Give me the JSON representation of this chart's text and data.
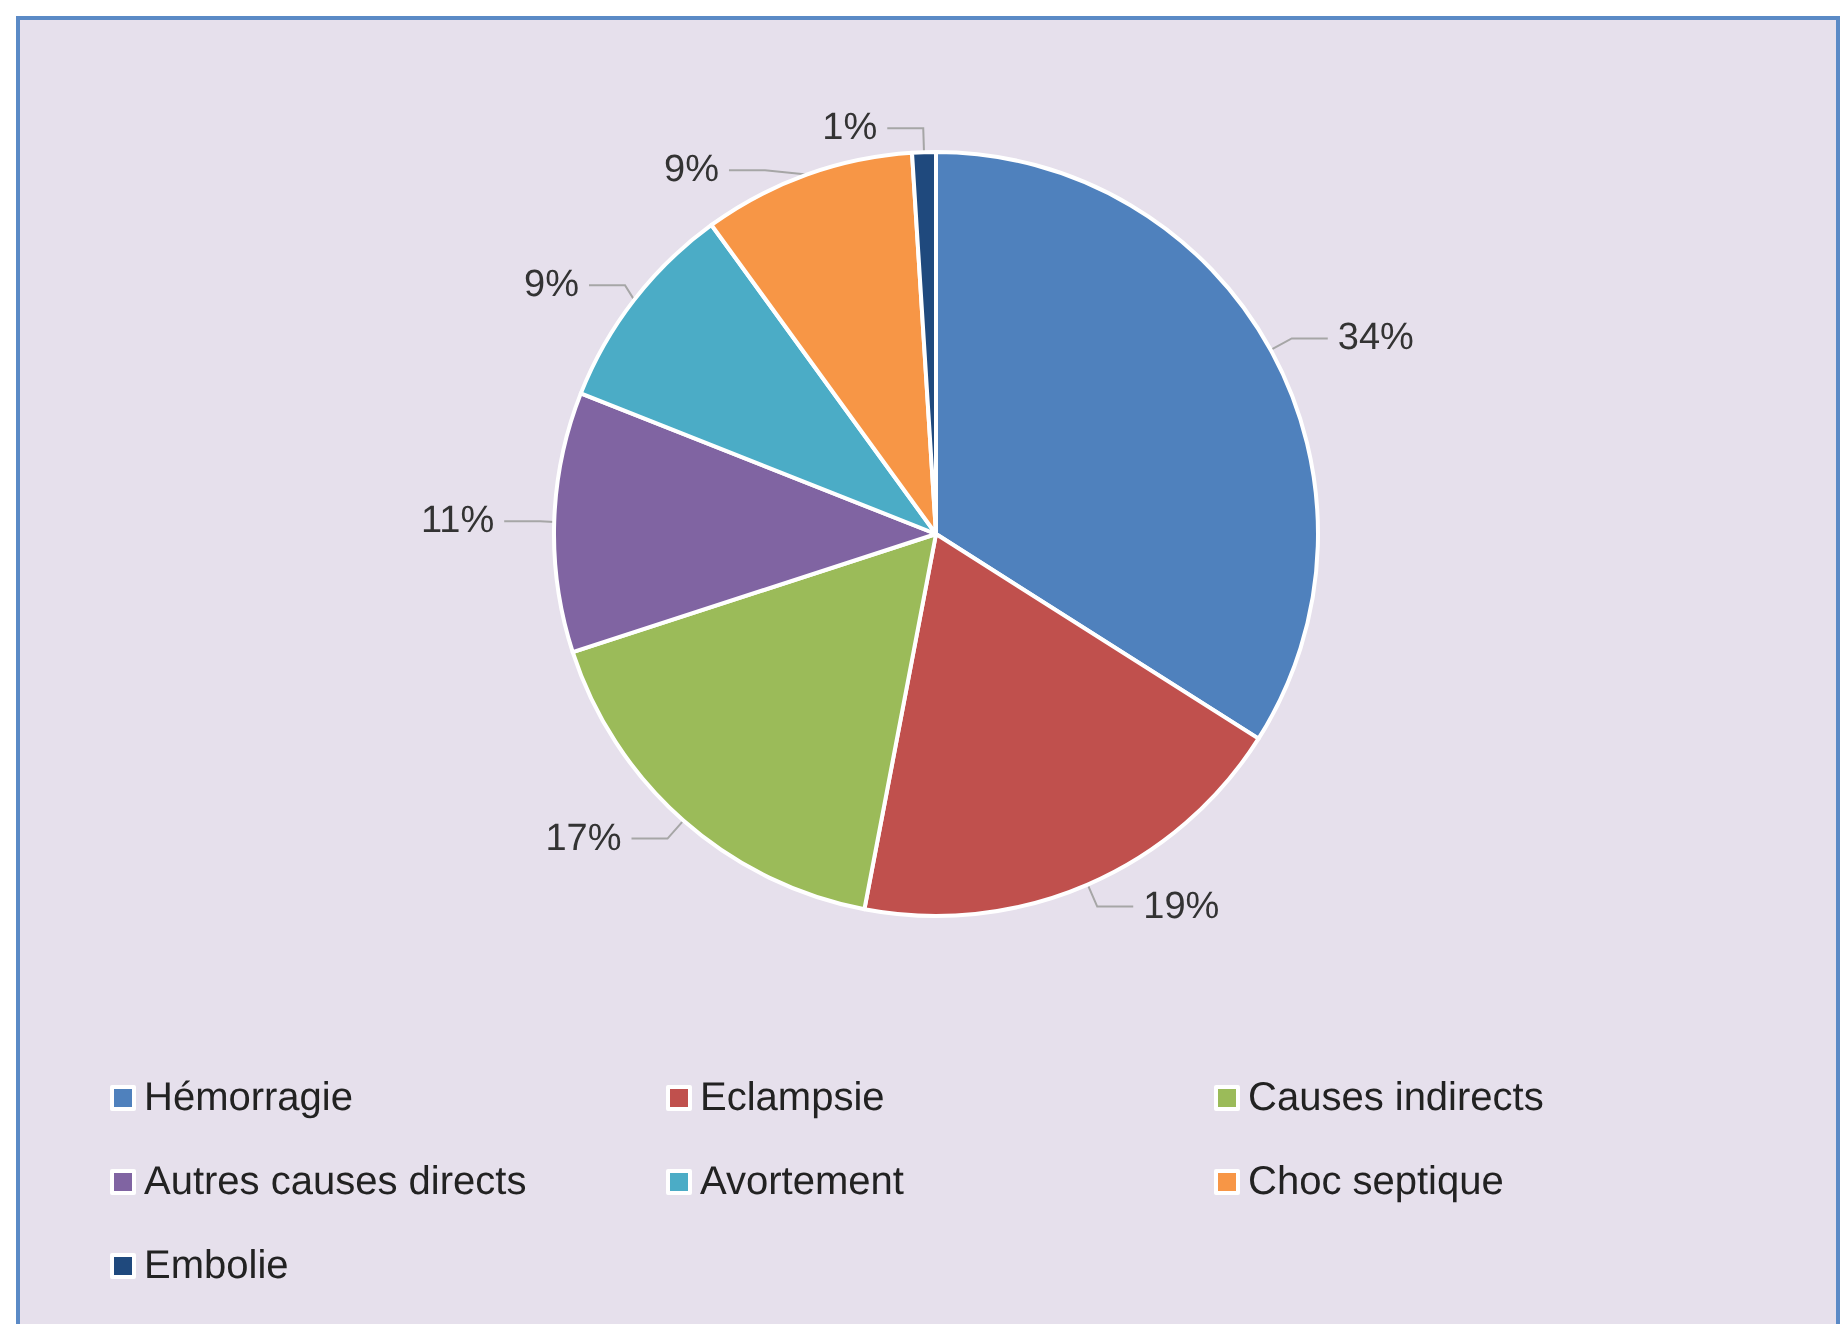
{
  "chart_data": {
    "type": "pie",
    "categories": [
      "Hémorragie",
      "Eclampsie",
      "Causes indirects",
      "Autres causes directs",
      "Avortement",
      "Choc septique",
      "Embolie"
    ],
    "values": [
      34,
      19,
      17,
      11,
      9,
      9,
      1
    ],
    "value_labels": [
      "34%",
      "19%",
      "17%",
      "11%",
      "9%",
      "9%",
      "1%"
    ],
    "colors": [
      "#4f81bd",
      "#c0504d",
      "#9bbb59",
      "#8064a2",
      "#4bacc6",
      "#f79646",
      "#1f497d"
    ],
    "legend": "bottom"
  }
}
